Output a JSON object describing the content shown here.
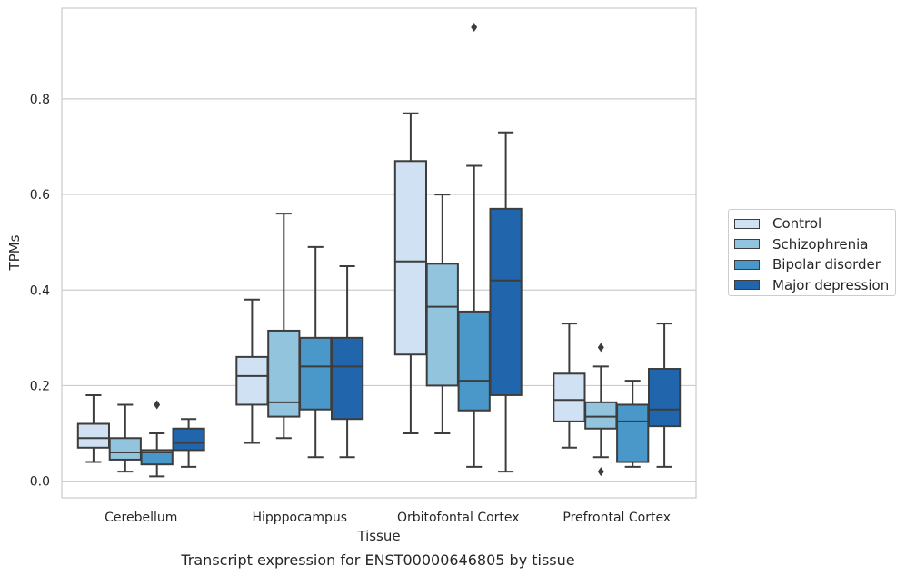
{
  "chart_data": {
    "type": "box",
    "title": "",
    "caption": "Transcript expression for ENST00000646805 by tissue",
    "xlabel": "Tissue",
    "ylabel": "TPMs",
    "ylim": [
      -0.035,
      0.99
    ],
    "yticks": [
      0.0,
      0.2,
      0.4,
      0.6,
      0.8
    ],
    "ytick_labels": [
      "0.0",
      "0.2",
      "0.4",
      "0.6",
      "0.8"
    ],
    "grid": "horizontal",
    "legend_position": "right",
    "categories": [
      "Cerebellum",
      "Hipppocampus",
      "Orbitofontal Cortex",
      "Prefrontal Cortex"
    ],
    "series": [
      {
        "name": "Control",
        "color": "#cfe1f2",
        "boxes": [
          {
            "whislo": 0.04,
            "q1": 0.07,
            "med": 0.09,
            "q3": 0.12,
            "whishi": 0.18,
            "fliers": []
          },
          {
            "whislo": 0.08,
            "q1": 0.16,
            "med": 0.22,
            "q3": 0.26,
            "whishi": 0.38,
            "fliers": []
          },
          {
            "whislo": 0.1,
            "q1": 0.265,
            "med": 0.46,
            "q3": 0.67,
            "whishi": 0.77,
            "fliers": []
          },
          {
            "whislo": 0.07,
            "q1": 0.125,
            "med": 0.17,
            "q3": 0.225,
            "whishi": 0.33,
            "fliers": []
          }
        ]
      },
      {
        "name": "Schizophrenia",
        "color": "#93c4de",
        "boxes": [
          {
            "whislo": 0.02,
            "q1": 0.045,
            "med": 0.06,
            "q3": 0.09,
            "whishi": 0.16,
            "fliers": []
          },
          {
            "whislo": 0.09,
            "q1": 0.135,
            "med": 0.165,
            "q3": 0.315,
            "whishi": 0.56,
            "fliers": []
          },
          {
            "whislo": 0.1,
            "q1": 0.2,
            "med": 0.365,
            "q3": 0.455,
            "whishi": 0.6,
            "fliers": []
          },
          {
            "whislo": 0.05,
            "q1": 0.11,
            "med": 0.135,
            "q3": 0.165,
            "whishi": 0.24,
            "fliers": [
              0.28,
              0.02
            ]
          }
        ]
      },
      {
        "name": "Bipolar disorder",
        "color": "#4a98c9",
        "boxes": [
          {
            "whislo": 0.01,
            "q1": 0.035,
            "med": 0.06,
            "q3": 0.065,
            "whishi": 0.1,
            "fliers": [
              0.16
            ]
          },
          {
            "whislo": 0.05,
            "q1": 0.15,
            "med": 0.24,
            "q3": 0.3,
            "whishi": 0.49,
            "fliers": []
          },
          {
            "whislo": 0.03,
            "q1": 0.148,
            "med": 0.21,
            "q3": 0.355,
            "whishi": 0.66,
            "fliers": [
              0.95
            ]
          },
          {
            "whislo": 0.03,
            "q1": 0.04,
            "med": 0.125,
            "q3": 0.16,
            "whishi": 0.21,
            "fliers": []
          }
        ]
      },
      {
        "name": "Major depression",
        "color": "#2166ac",
        "boxes": [
          {
            "whislo": 0.03,
            "q1": 0.065,
            "med": 0.08,
            "q3": 0.11,
            "whishi": 0.13,
            "fliers": []
          },
          {
            "whislo": 0.05,
            "q1": 0.13,
            "med": 0.24,
            "q3": 0.3,
            "whishi": 0.45,
            "fliers": []
          },
          {
            "whislo": 0.02,
            "q1": 0.18,
            "med": 0.42,
            "q3": 0.57,
            "whishi": 0.73,
            "fliers": []
          },
          {
            "whislo": 0.03,
            "q1": 0.115,
            "med": 0.15,
            "q3": 0.235,
            "whishi": 0.33,
            "fliers": []
          }
        ]
      }
    ]
  }
}
